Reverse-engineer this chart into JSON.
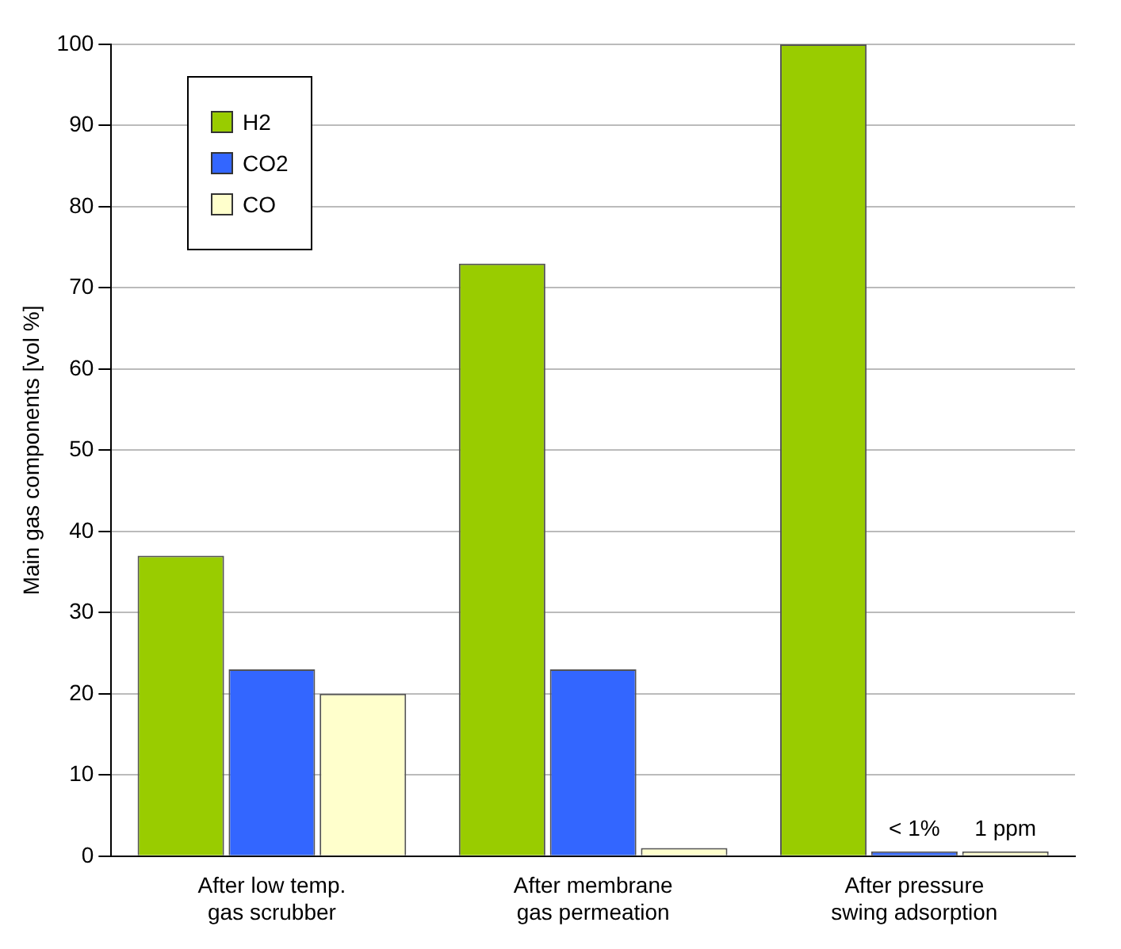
{
  "chart_data": {
    "type": "bar",
    "ylabel": "Main gas components [vol %]",
    "categories": [
      "After low temp. gas scrubber",
      "After membrane gas permeation",
      "After pressure swing adsorption"
    ],
    "series": [
      {
        "name": "H2",
        "color": "#99cc00",
        "values": [
          37,
          73,
          100
        ]
      },
      {
        "name": "CO2",
        "color": "#3366ff",
        "values": [
          23,
          23,
          0
        ]
      },
      {
        "name": "CO",
        "color": "#ffffcc",
        "values": [
          20,
          1,
          0
        ]
      }
    ],
    "ylim": [
      0,
      100
    ],
    "yticks": [
      0,
      10,
      20,
      30,
      40,
      50,
      60,
      70,
      80,
      90,
      100
    ],
    "grid": "y",
    "legend": "top left",
    "annotations": [
      {
        "text": "< 1%",
        "x": "After pressure swing adsorption",
        "y": 0
      },
      {
        "text": "1 ppm",
        "x": "After pressure swing adsorption",
        "y": 0
      }
    ]
  }
}
